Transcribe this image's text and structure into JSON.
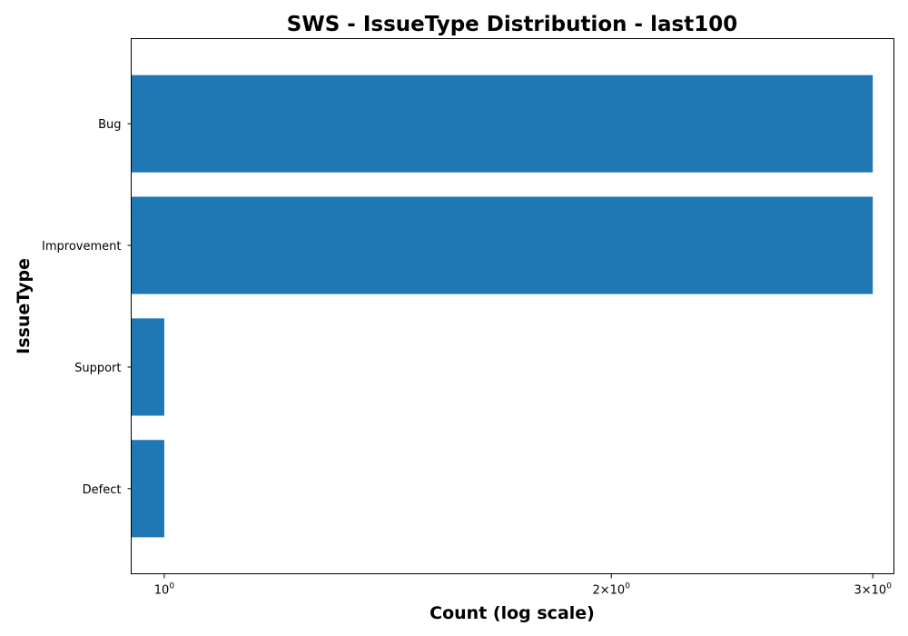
{
  "chart_data": {
    "type": "bar",
    "orientation": "horizontal",
    "title": "SWS - IssueType Distribution - last100",
    "xlabel": "Count (log scale)",
    "ylabel": "IssueType",
    "x_scale": "log",
    "xlim": [
      0.95,
      3.1
    ],
    "categories": [
      "Bug",
      "Improvement",
      "Support",
      "Defect"
    ],
    "values": [
      3,
      3,
      1,
      1
    ],
    "x_ticks": [
      {
        "value": 1,
        "mantissa": "",
        "base": "10",
        "exp": "0"
      },
      {
        "value": 2,
        "mantissa": "2×",
        "base": "10",
        "exp": "0"
      },
      {
        "value": 3,
        "mantissa": "3×",
        "base": "10",
        "exp": "0"
      }
    ],
    "bar_color": "#1f77b4",
    "grid": false,
    "legend": "none"
  }
}
